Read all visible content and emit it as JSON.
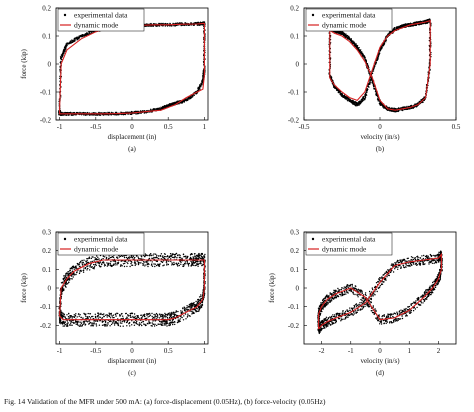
{
  "figure_caption": "Fig. 14 Validation of the MFR under 500 mA: (a) force-displacement (0.05Hz), (b) force-velocity (0.05Hz)",
  "colors": {
    "experimental": "#000000",
    "model": "#d62020"
  },
  "chart_data": [
    {
      "type": "line",
      "panel": "(a)",
      "caption": "(a)",
      "xlabel": "displacement (in)",
      "ylabel": "force (kip)",
      "xlim": [
        -1.05,
        1.05
      ],
      "ylim": [
        -0.2,
        0.2
      ],
      "xticks": [
        -1,
        -0.5,
        0,
        0.5,
        1
      ],
      "xtick_labels": [
        "-1",
        "-0.5",
        "0",
        "0.5",
        "1"
      ],
      "yticks": [
        -0.2,
        -0.1,
        0,
        0.1,
        0.2
      ],
      "ytick_labels": [
        "-0.2",
        "-0.1",
        "0",
        "0.1",
        "0.2"
      ],
      "legend": [
        "experimental data",
        "dynamic mode"
      ],
      "legend_position": "top-left",
      "series": [
        {
          "name": "experimental data",
          "style": "dots",
          "noise": 0.005,
          "x": [
            -1,
            -0.98,
            -0.9,
            -0.7,
            -0.5,
            -0.3,
            -0.1,
            0.1,
            0.3,
            0.5,
            0.7,
            0.9,
            0.98,
            1,
            1,
            0.98,
            0.9,
            0.75,
            0.6,
            0.5,
            0.4,
            0.2,
            0,
            -0.2,
            -0.4,
            -0.6,
            -0.8,
            -0.95,
            -1,
            -1
          ],
          "y": [
            -0.17,
            0.02,
            0.07,
            0.1,
            0.12,
            0.13,
            0.135,
            0.138,
            0.14,
            0.14,
            0.142,
            0.143,
            0.145,
            0.145,
            -0.02,
            -0.06,
            -0.1,
            -0.13,
            -0.14,
            -0.15,
            -0.16,
            -0.17,
            -0.175,
            -0.177,
            -0.178,
            -0.178,
            -0.178,
            -0.178,
            -0.178,
            -0.17
          ]
        },
        {
          "name": "dynamic mode",
          "style": "line",
          "x": [
            -1,
            -0.98,
            -0.9,
            -0.7,
            -0.5,
            -0.3,
            -0.1,
            0.1,
            0.3,
            0.5,
            0.7,
            0.9,
            0.98,
            1,
            1,
            0.98,
            0.9,
            0.75,
            0.6,
            0.5,
            0.4,
            0.2,
            0,
            -0.2,
            -0.4,
            -0.6,
            -0.8,
            -0.95,
            -1,
            -1
          ],
          "y": [
            -0.16,
            0.0,
            0.05,
            0.09,
            0.115,
            0.13,
            0.135,
            0.138,
            0.14,
            0.14,
            0.142,
            0.143,
            0.145,
            0.145,
            -0.04,
            -0.09,
            -0.1,
            -0.12,
            -0.145,
            -0.155,
            -0.165,
            -0.17,
            -0.175,
            -0.177,
            -0.178,
            -0.178,
            -0.178,
            -0.178,
            -0.178,
            -0.16
          ]
        }
      ]
    },
    {
      "type": "line",
      "panel": "(b)",
      "caption": "(b)",
      "xlabel": "velocity (in/s)",
      "ylabel": "",
      "xlim": [
        -0.5,
        0.5
      ],
      "ylim": [
        -0.2,
        0.2
      ],
      "xticks": [
        -0.5,
        0,
        0.5
      ],
      "xtick_labels": [
        "-0.5",
        "0",
        "0.5"
      ],
      "yticks": [
        -0.2,
        -0.1,
        0,
        0.1,
        0.2
      ],
      "ytick_labels": [
        "-0.2",
        "-0.1",
        "0",
        "0.1",
        "0.2"
      ],
      "legend": [
        "experimental data",
        "dynamic mode"
      ],
      "legend_position": "top-left",
      "series": [
        {
          "name": "experimental data",
          "style": "dots",
          "noise": 0.006,
          "x": [
            -0.33,
            -0.3,
            -0.25,
            -0.2,
            -0.15,
            -0.1,
            -0.05,
            0,
            0.05,
            0.1,
            0.15,
            0.2,
            0.25,
            0.3,
            0.33,
            0.33,
            0.3,
            0.25,
            0.2,
            0.15,
            0.1,
            0.05,
            0,
            -0.05,
            -0.1,
            -0.15,
            -0.2,
            -0.25,
            -0.3,
            -0.33,
            -0.33
          ],
          "y": [
            -0.04,
            -0.08,
            -0.11,
            -0.13,
            -0.145,
            -0.12,
            -0.03,
            0.05,
            0.1,
            0.125,
            0.135,
            0.14,
            0.145,
            0.15,
            0.155,
            0.0,
            -0.12,
            -0.145,
            -0.155,
            -0.16,
            -0.165,
            -0.16,
            -0.14,
            -0.06,
            0.02,
            0.06,
            0.09,
            0.11,
            0.12,
            0.13,
            -0.04
          ]
        },
        {
          "name": "dynamic mode",
          "style": "line",
          "x": [
            -0.33,
            -0.3,
            -0.25,
            -0.2,
            -0.15,
            -0.1,
            -0.05,
            0,
            0.05,
            0.1,
            0.15,
            0.2,
            0.25,
            0.3,
            0.33,
            0.33,
            0.3,
            0.25,
            0.2,
            0.15,
            0.1,
            0.05,
            0,
            -0.05,
            -0.1,
            -0.15,
            -0.2,
            -0.25,
            -0.3,
            -0.33,
            -0.33
          ],
          "y": [
            -0.05,
            -0.075,
            -0.1,
            -0.12,
            -0.13,
            -0.1,
            -0.02,
            0.06,
            0.1,
            0.12,
            0.13,
            0.14,
            0.145,
            0.15,
            0.155,
            0.0,
            -0.12,
            -0.145,
            -0.155,
            -0.16,
            -0.165,
            -0.16,
            -0.13,
            -0.05,
            0.01,
            0.05,
            0.08,
            0.1,
            0.11,
            0.12,
            -0.05
          ]
        }
      ]
    },
    {
      "type": "line",
      "panel": "(c)",
      "caption": "(c)",
      "xlabel": "displacement (in)",
      "ylabel": "force (kip)",
      "xlim": [
        -1.05,
        1.05
      ],
      "ylim": [
        -0.3,
        0.3
      ],
      "xticks": [
        -1,
        -0.5,
        0,
        0.5,
        1
      ],
      "xtick_labels": [
        "-1",
        "-0.5",
        "0",
        "0.5",
        "1"
      ],
      "yticks": [
        -0.2,
        -0.1,
        0,
        0.1,
        0.2,
        0.3
      ],
      "ytick_labels": [
        "-0.2",
        "-0.1",
        "0",
        "0.1",
        "0.2",
        "0.3"
      ],
      "legend": [
        "experimental data",
        "dynamic mode"
      ],
      "legend_position": "top-left",
      "series": [
        {
          "name": "experimental data",
          "style": "dots",
          "noise": 0.035,
          "x": [
            -1,
            -0.98,
            -0.9,
            -0.8,
            -0.6,
            -0.4,
            -0.2,
            0,
            0.2,
            0.4,
            0.6,
            0.8,
            0.9,
            1,
            1,
            0.98,
            0.9,
            0.8,
            0.6,
            0.5,
            0.4,
            0.2,
            0,
            -0.2,
            -0.4,
            -0.6,
            -0.8,
            -0.95,
            -1
          ],
          "y": [
            -0.15,
            0.0,
            0.05,
            0.09,
            0.13,
            0.15,
            0.15,
            0.15,
            0.15,
            0.15,
            0.15,
            0.15,
            0.15,
            0.15,
            0.0,
            -0.06,
            -0.1,
            -0.12,
            -0.16,
            -0.17,
            -0.17,
            -0.17,
            -0.17,
            -0.17,
            -0.17,
            -0.17,
            -0.17,
            -0.17,
            -0.15
          ]
        },
        {
          "name": "dynamic mode",
          "style": "line",
          "x": [
            -1,
            -0.98,
            -0.9,
            -0.8,
            -0.6,
            -0.4,
            -0.2,
            0,
            0.2,
            0.4,
            0.6,
            0.8,
            0.9,
            1,
            1,
            0.98,
            0.9,
            0.8,
            0.6,
            0.5,
            0.4,
            0.2,
            0,
            -0.2,
            -0.4,
            -0.6,
            -0.8,
            -0.95,
            -1
          ],
          "y": [
            -0.15,
            0.0,
            0.05,
            0.09,
            0.13,
            0.15,
            0.15,
            0.15,
            0.15,
            0.15,
            0.15,
            0.15,
            0.15,
            0.15,
            0.0,
            -0.06,
            -0.1,
            -0.12,
            -0.16,
            -0.17,
            -0.17,
            -0.17,
            -0.17,
            -0.17,
            -0.17,
            -0.17,
            -0.17,
            -0.17,
            -0.15
          ]
        }
      ]
    },
    {
      "type": "line",
      "panel": "(d)",
      "caption": "(d)",
      "xlabel": "velocity (in/s)",
      "ylabel": "force (kip)",
      "xlim": [
        -2.6,
        2.6
      ],
      "ylim": [
        -0.3,
        0.3
      ],
      "xticks": [
        -2,
        -1,
        0,
        1,
        2
      ],
      "xtick_labels": [
        "-2",
        "-1",
        "0",
        "1",
        "2"
      ],
      "yticks": [
        -0.2,
        -0.1,
        0,
        0.1,
        0.2,
        0.3
      ],
      "ytick_labels": [
        "-0.2",
        "-0.1",
        "0",
        "0.1",
        "0.2",
        "0.3"
      ],
      "legend": [
        "experimental data",
        "dynamic mode"
      ],
      "legend_position": "top-left",
      "series": [
        {
          "name": "experimental data",
          "style": "dots",
          "noise": 0.025,
          "x": [
            -2.1,
            -2,
            -1.8,
            -1.5,
            -1,
            -0.5,
            0,
            0.5,
            1,
            1.5,
            2,
            2.1,
            2.1,
            2,
            1.8,
            1.5,
            1,
            0.5,
            0,
            -0.5,
            -1,
            -1.5,
            -1.8,
            -2,
            -2.1,
            -2.1
          ],
          "y": [
            -0.22,
            -0.2,
            -0.18,
            -0.16,
            -0.13,
            -0.08,
            0.03,
            0.12,
            0.14,
            0.15,
            0.16,
            0.18,
            0.1,
            0.05,
            0.0,
            -0.05,
            -0.12,
            -0.16,
            -0.17,
            -0.05,
            0.0,
            -0.03,
            -0.06,
            -0.1,
            -0.14,
            -0.22
          ]
        },
        {
          "name": "dynamic mode",
          "style": "line",
          "x": [
            -2.1,
            -2,
            -1.8,
            -1.5,
            -1,
            -0.5,
            0,
            0.5,
            1,
            1.5,
            2,
            2.1,
            2.1,
            2,
            1.8,
            1.5,
            1,
            0.5,
            0,
            -0.5,
            -1,
            -1.5,
            -1.8,
            -2,
            -2.1,
            -2.1
          ],
          "y": [
            -0.22,
            -0.2,
            -0.18,
            -0.16,
            -0.13,
            -0.08,
            0.03,
            0.12,
            0.14,
            0.15,
            0.16,
            0.18,
            0.1,
            0.05,
            0.0,
            -0.05,
            -0.12,
            -0.16,
            -0.17,
            -0.05,
            0.0,
            -0.03,
            -0.06,
            -0.1,
            -0.14,
            -0.22
          ]
        }
      ]
    }
  ]
}
